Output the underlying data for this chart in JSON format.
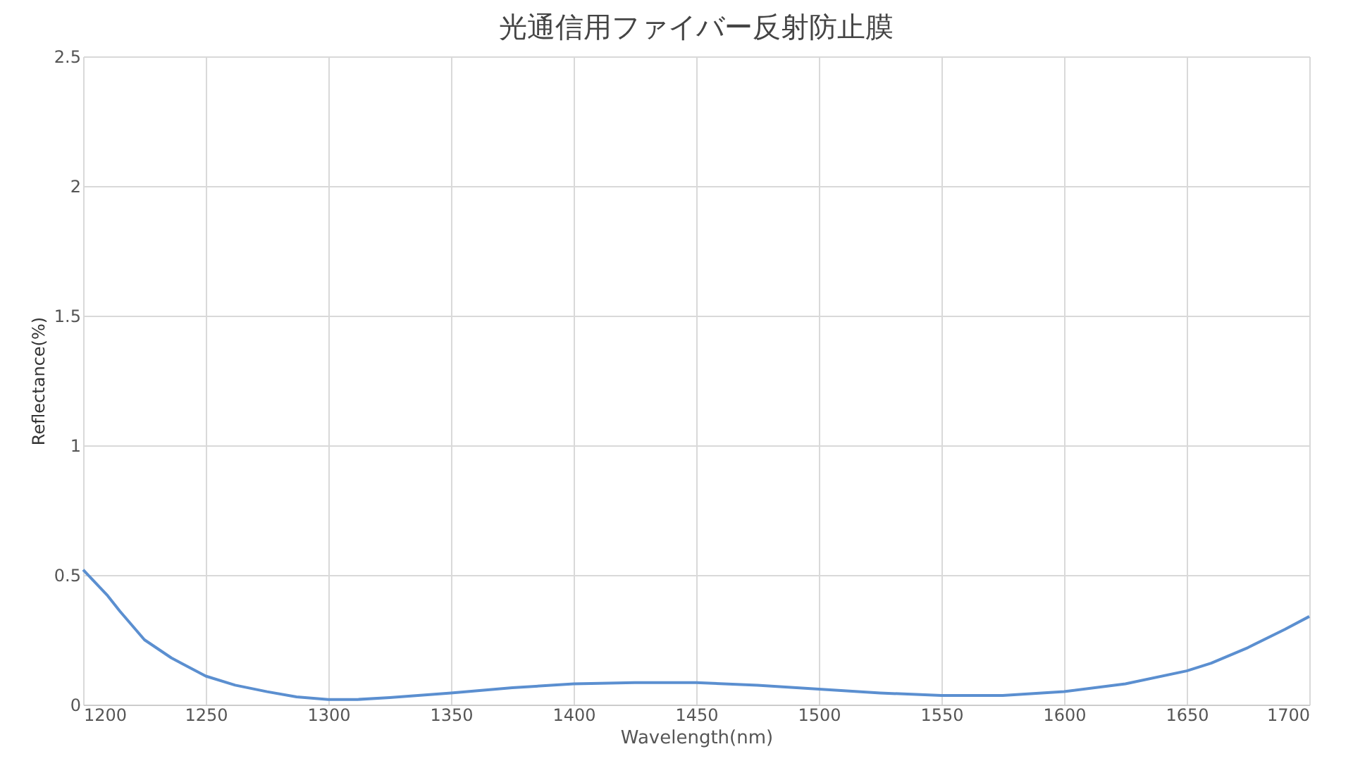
{
  "chart_data": {
    "type": "line",
    "title": "光通信用ファイバー反射防止膜",
    "xlabel": "Wavelength(nm)",
    "ylabel": "Reflectance(%)",
    "x": [
      1200,
      1210,
      1215,
      1225,
      1236,
      1250,
      1262,
      1275,
      1287,
      1300,
      1312,
      1325,
      1350,
      1375,
      1400,
      1425,
      1450,
      1475,
      1500,
      1525,
      1550,
      1575,
      1600,
      1625,
      1650,
      1660,
      1675,
      1690,
      1700
    ],
    "series": [
      {
        "color": "#5b8fd0",
        "values": [
          0.52,
          0.42,
          0.36,
          0.25,
          0.18,
          0.11,
          0.075,
          0.05,
          0.03,
          0.02,
          0.02,
          0.027,
          0.045,
          0.065,
          0.08,
          0.085,
          0.085,
          0.075,
          0.06,
          0.045,
          0.035,
          0.035,
          0.05,
          0.08,
          0.13,
          0.16,
          0.22,
          0.29,
          0.34
        ]
      }
    ],
    "xlim": [
      1200,
      1700
    ],
    "xticks": [
      1200,
      1250,
      1300,
      1350,
      1400,
      1450,
      1500,
      1550,
      1600,
      1650,
      1700
    ],
    "ylim": [
      0,
      2.5
    ],
    "yticks": [
      0,
      0.5,
      1,
      1.5,
      2,
      2.5
    ],
    "grid": true,
    "marker": "none",
    "line_style": "solid"
  }
}
